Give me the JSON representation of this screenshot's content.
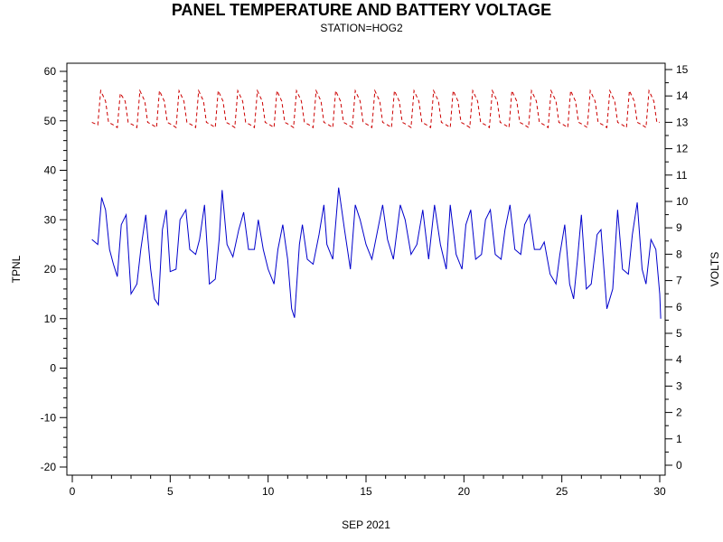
{
  "chart_data": {
    "type": "line",
    "title": "PANEL TEMPERATURE AND BATTERY VOLTAGE",
    "subtitle": "STATION=HOG2",
    "xlabel": "SEP 2021",
    "ylabel": "TPNL",
    "y2label": "VOLTS",
    "xlim": [
      0,
      30
    ],
    "ylim": [
      -20,
      60
    ],
    "y2lim": [
      0,
      15
    ],
    "xticks": [
      0,
      5,
      10,
      15,
      20,
      25,
      30
    ],
    "yticks": [
      -20,
      -10,
      0,
      10,
      20,
      30,
      40,
      50,
      60
    ],
    "y2ticks": [
      0,
      1,
      2,
      3,
      4,
      5,
      6,
      7,
      8,
      9,
      10,
      11,
      12,
      13,
      14,
      15
    ],
    "grid": false,
    "series": [
      {
        "axis": "left",
        "color": "#0000cc",
        "style": "solid",
        "points": [
          [
            1.0,
            26
          ],
          [
            1.3,
            25
          ],
          [
            1.5,
            34.5
          ],
          [
            1.7,
            32
          ],
          [
            1.9,
            24
          ],
          [
            2.1,
            21
          ],
          [
            2.3,
            18.5
          ],
          [
            2.5,
            29
          ],
          [
            2.75,
            31
          ],
          [
            3.0,
            15
          ],
          [
            3.3,
            17
          ],
          [
            3.5,
            24
          ],
          [
            3.75,
            31
          ],
          [
            4.0,
            20
          ],
          [
            4.2,
            14
          ],
          [
            4.4,
            12.8
          ],
          [
            4.6,
            28
          ],
          [
            4.8,
            32
          ],
          [
            5.0,
            19.5
          ],
          [
            5.3,
            20
          ],
          [
            5.5,
            30
          ],
          [
            5.8,
            32
          ],
          [
            6.0,
            24
          ],
          [
            6.3,
            23
          ],
          [
            6.5,
            26
          ],
          [
            6.75,
            33
          ],
          [
            7.0,
            17
          ],
          [
            7.3,
            18
          ],
          [
            7.5,
            26
          ],
          [
            7.65,
            36
          ],
          [
            7.9,
            25
          ],
          [
            8.2,
            22.5
          ],
          [
            8.5,
            28
          ],
          [
            8.75,
            31.5
          ],
          [
            9.0,
            24
          ],
          [
            9.3,
            24
          ],
          [
            9.5,
            30
          ],
          [
            9.75,
            24
          ],
          [
            10.0,
            20
          ],
          [
            10.3,
            17
          ],
          [
            10.5,
            24
          ],
          [
            10.75,
            29
          ],
          [
            11.0,
            22
          ],
          [
            11.2,
            12
          ],
          [
            11.35,
            10.2
          ],
          [
            11.6,
            25
          ],
          [
            11.75,
            29
          ],
          [
            12.0,
            22
          ],
          [
            12.3,
            21
          ],
          [
            12.6,
            27
          ],
          [
            12.85,
            33
          ],
          [
            13.0,
            25
          ],
          [
            13.3,
            22
          ],
          [
            13.6,
            36.5
          ],
          [
            13.9,
            28
          ],
          [
            14.2,
            20
          ],
          [
            14.45,
            33
          ],
          [
            14.7,
            30
          ],
          [
            15.0,
            25
          ],
          [
            15.3,
            22
          ],
          [
            15.6,
            28
          ],
          [
            15.85,
            33
          ],
          [
            16.1,
            26
          ],
          [
            16.4,
            22
          ],
          [
            16.75,
            33
          ],
          [
            17.0,
            30
          ],
          [
            17.3,
            23
          ],
          [
            17.6,
            25
          ],
          [
            17.9,
            32
          ],
          [
            18.2,
            22
          ],
          [
            18.5,
            33
          ],
          [
            18.8,
            25
          ],
          [
            19.1,
            20
          ],
          [
            19.3,
            33
          ],
          [
            19.6,
            23
          ],
          [
            19.9,
            20
          ],
          [
            20.1,
            29
          ],
          [
            20.35,
            32
          ],
          [
            20.6,
            22
          ],
          [
            20.9,
            23
          ],
          [
            21.1,
            30
          ],
          [
            21.35,
            32
          ],
          [
            21.6,
            23
          ],
          [
            21.9,
            22
          ],
          [
            22.1,
            28
          ],
          [
            22.35,
            33
          ],
          [
            22.6,
            24
          ],
          [
            22.9,
            23
          ],
          [
            23.1,
            29
          ],
          [
            23.35,
            31
          ],
          [
            23.6,
            24
          ],
          [
            23.9,
            24
          ],
          [
            24.1,
            25.5
          ],
          [
            24.4,
            19
          ],
          [
            24.7,
            17
          ],
          [
            24.9,
            23
          ],
          [
            25.15,
            29
          ],
          [
            25.4,
            17
          ],
          [
            25.6,
            14
          ],
          [
            25.8,
            22
          ],
          [
            26.0,
            31
          ],
          [
            26.25,
            16
          ],
          [
            26.5,
            17
          ],
          [
            26.8,
            27
          ],
          [
            27.0,
            28
          ],
          [
            27.3,
            12
          ],
          [
            27.6,
            16
          ],
          [
            27.85,
            32
          ],
          [
            28.1,
            20
          ],
          [
            28.4,
            19
          ],
          [
            28.6,
            27
          ],
          [
            28.85,
            33.5
          ],
          [
            29.1,
            20
          ],
          [
            29.3,
            17
          ],
          [
            29.55,
            26
          ],
          [
            29.8,
            24
          ],
          [
            30.0,
            15
          ],
          [
            30.05,
            10
          ]
        ]
      },
      {
        "axis": "right",
        "color": "#cc0000",
        "style": "dashed",
        "points": [
          [
            1.0,
            13
          ],
          [
            1.3,
            12.9
          ],
          [
            1.45,
            14.2
          ],
          [
            1.7,
            13.8
          ],
          [
            1.85,
            13
          ],
          [
            2.1,
            12.9
          ],
          [
            2.3,
            12.8
          ],
          [
            2.45,
            14.1
          ],
          [
            2.7,
            13.8
          ],
          [
            2.85,
            13
          ],
          [
            3.1,
            12.9
          ],
          [
            3.3,
            12.8
          ],
          [
            3.45,
            14.2
          ],
          [
            3.7,
            13.8
          ],
          [
            3.85,
            13
          ],
          [
            4.1,
            12.9
          ],
          [
            4.3,
            12.8
          ],
          [
            4.45,
            14.2
          ],
          [
            4.7,
            13.8
          ],
          [
            4.85,
            13
          ],
          [
            5.1,
            12.9
          ],
          [
            5.3,
            12.8
          ],
          [
            5.45,
            14.2
          ],
          [
            5.7,
            13.8
          ],
          [
            5.85,
            13
          ],
          [
            6.1,
            12.9
          ],
          [
            6.3,
            12.8
          ],
          [
            6.45,
            14.2
          ],
          [
            6.7,
            13.8
          ],
          [
            6.85,
            13
          ],
          [
            7.1,
            12.9
          ],
          [
            7.3,
            12.8
          ],
          [
            7.45,
            14.2
          ],
          [
            7.7,
            13.8
          ],
          [
            7.85,
            13
          ],
          [
            8.1,
            12.9
          ],
          [
            8.3,
            12.8
          ],
          [
            8.45,
            14.2
          ],
          [
            8.7,
            13.8
          ],
          [
            8.85,
            13
          ],
          [
            9.1,
            12.9
          ],
          [
            9.3,
            12.8
          ],
          [
            9.45,
            14.2
          ],
          [
            9.7,
            13.8
          ],
          [
            9.85,
            13
          ],
          [
            10.1,
            12.9
          ],
          [
            10.3,
            12.8
          ],
          [
            10.45,
            14.2
          ],
          [
            10.7,
            13.8
          ],
          [
            10.85,
            13
          ],
          [
            11.1,
            12.9
          ],
          [
            11.3,
            12.8
          ],
          [
            11.45,
            14.2
          ],
          [
            11.7,
            13.8
          ],
          [
            11.85,
            13
          ],
          [
            12.1,
            12.9
          ],
          [
            12.3,
            12.8
          ],
          [
            12.45,
            14.2
          ],
          [
            12.7,
            13.8
          ],
          [
            12.85,
            13
          ],
          [
            13.1,
            12.9
          ],
          [
            13.3,
            12.8
          ],
          [
            13.45,
            14.2
          ],
          [
            13.7,
            13.8
          ],
          [
            13.85,
            13
          ],
          [
            14.1,
            12.9
          ],
          [
            14.3,
            12.8
          ],
          [
            14.45,
            14.2
          ],
          [
            14.7,
            13.8
          ],
          [
            14.85,
            13
          ],
          [
            15.1,
            12.9
          ],
          [
            15.3,
            12.8
          ],
          [
            15.45,
            14.2
          ],
          [
            15.7,
            13.8
          ],
          [
            15.85,
            13
          ],
          [
            16.1,
            12.9
          ],
          [
            16.3,
            12.8
          ],
          [
            16.45,
            14.2
          ],
          [
            16.7,
            13.8
          ],
          [
            16.85,
            13
          ],
          [
            17.1,
            12.9
          ],
          [
            17.3,
            12.8
          ],
          [
            17.45,
            14.2
          ],
          [
            17.7,
            13.8
          ],
          [
            17.85,
            13
          ],
          [
            18.1,
            12.9
          ],
          [
            18.3,
            12.8
          ],
          [
            18.45,
            14.2
          ],
          [
            18.7,
            13.8
          ],
          [
            18.85,
            13
          ],
          [
            19.1,
            12.9
          ],
          [
            19.3,
            12.8
          ],
          [
            19.45,
            14.2
          ],
          [
            19.7,
            13.8
          ],
          [
            19.85,
            13
          ],
          [
            20.1,
            12.9
          ],
          [
            20.3,
            12.8
          ],
          [
            20.45,
            14.2
          ],
          [
            20.7,
            13.8
          ],
          [
            20.85,
            13
          ],
          [
            21.1,
            12.9
          ],
          [
            21.3,
            12.8
          ],
          [
            21.45,
            14.2
          ],
          [
            21.7,
            13.8
          ],
          [
            21.85,
            13
          ],
          [
            22.1,
            12.9
          ],
          [
            22.3,
            12.8
          ],
          [
            22.45,
            14.2
          ],
          [
            22.7,
            13.8
          ],
          [
            22.85,
            13
          ],
          [
            23.1,
            12.9
          ],
          [
            23.3,
            12.8
          ],
          [
            23.45,
            14.2
          ],
          [
            23.7,
            13.8
          ],
          [
            23.85,
            13
          ],
          [
            24.1,
            12.9
          ],
          [
            24.3,
            12.8
          ],
          [
            24.45,
            14.2
          ],
          [
            24.7,
            13.8
          ],
          [
            24.85,
            13
          ],
          [
            25.1,
            12.9
          ],
          [
            25.3,
            12.8
          ],
          [
            25.45,
            14.2
          ],
          [
            25.7,
            13.8
          ],
          [
            25.85,
            13
          ],
          [
            26.1,
            12.9
          ],
          [
            26.3,
            12.8
          ],
          [
            26.45,
            14.2
          ],
          [
            26.7,
            13.8
          ],
          [
            26.85,
            13
          ],
          [
            27.1,
            12.9
          ],
          [
            27.3,
            12.8
          ],
          [
            27.45,
            14.2
          ],
          [
            27.7,
            13.8
          ],
          [
            27.85,
            13
          ],
          [
            28.1,
            12.9
          ],
          [
            28.3,
            12.8
          ],
          [
            28.45,
            14.2
          ],
          [
            28.7,
            13.8
          ],
          [
            28.85,
            13
          ],
          [
            29.1,
            12.9
          ],
          [
            29.3,
            12.8
          ],
          [
            29.45,
            14.2
          ],
          [
            29.7,
            13.8
          ],
          [
            29.85,
            13
          ],
          [
            30.0,
            13
          ]
        ]
      }
    ]
  }
}
